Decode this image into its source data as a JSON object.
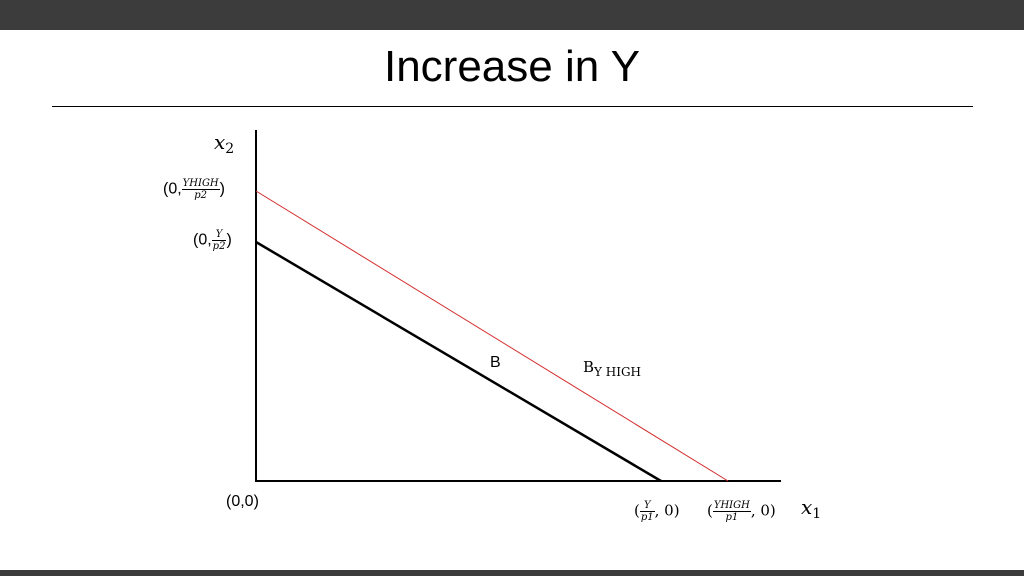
{
  "slide": {
    "title": "Increase in Y"
  },
  "diagram": {
    "axes": {
      "y_axis_label": {
        "var": "x",
        "sub": "2"
      },
      "x_axis_label": {
        "var": "x",
        "sub": "1"
      },
      "origin_label": "(0,0)"
    },
    "y_intercepts": [
      {
        "prefix": "(0,",
        "num": "YHIGH",
        "den": "p2",
        "suffix": ")"
      },
      {
        "prefix": "(0,",
        "num": "Y",
        "den": "p2",
        "suffix": ")"
      }
    ],
    "x_intercepts": [
      {
        "prefix": "(",
        "num": "Y",
        "den": "p1",
        "suffix": ", 0)"
      },
      {
        "prefix": "(",
        "num": "YHIGH",
        "den": "p1",
        "suffix": ", 0)"
      }
    ],
    "lines": [
      {
        "name": "B",
        "color": "#000000"
      },
      {
        "name_main": "B",
        "name_sub": "Y HIGH",
        "color": "#d32a2a"
      }
    ]
  },
  "colors": {
    "bars": "#3c3c3c",
    "budget_line": "#000000",
    "budget_line_high": "#d32a2a"
  }
}
